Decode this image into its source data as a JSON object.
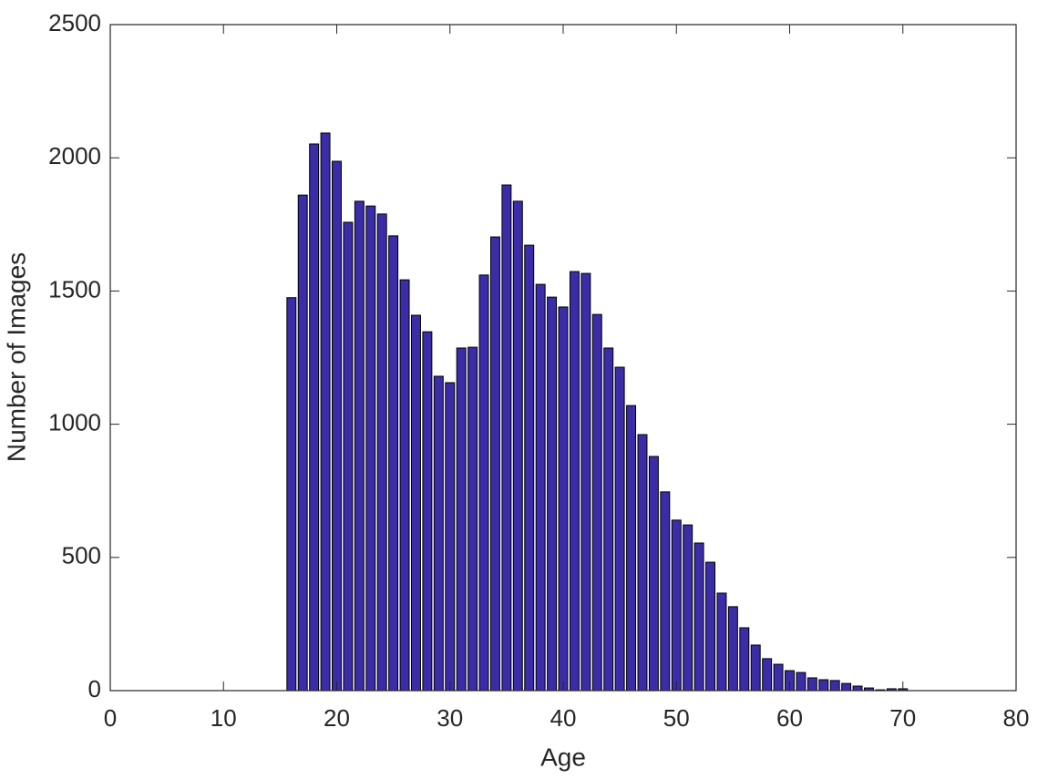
{
  "chart_data": {
    "type": "bar",
    "xlabel": "Age",
    "ylabel": "Number of Images",
    "x": [
      16,
      17,
      18,
      19,
      20,
      21,
      22,
      23,
      24,
      25,
      26,
      27,
      28,
      29,
      30,
      31,
      32,
      33,
      34,
      35,
      36,
      37,
      38,
      39,
      40,
      41,
      42,
      43,
      44,
      45,
      46,
      47,
      48,
      49,
      50,
      51,
      52,
      53,
      54,
      55,
      56,
      57,
      58,
      59,
      60,
      61,
      62,
      63,
      64,
      65,
      66,
      67,
      68,
      69,
      70
    ],
    "values": [
      1475,
      1860,
      2052,
      2093,
      1987,
      1758,
      1837,
      1819,
      1789,
      1707,
      1542,
      1409,
      1347,
      1180,
      1156,
      1286,
      1289,
      1560,
      1703,
      1898,
      1837,
      1672,
      1525,
      1477,
      1440,
      1573,
      1566,
      1412,
      1286,
      1214,
      1070,
      961,
      879,
      746,
      640,
      622,
      554,
      482,
      366,
      315,
      236,
      171,
      120,
      99,
      75,
      68,
      48,
      41,
      38,
      27,
      17,
      10,
      3,
      7,
      7
    ],
    "color": "#3b2ca8",
    "xlim": [
      0,
      80
    ],
    "xticks": [
      0,
      10,
      20,
      30,
      40,
      50,
      60,
      70,
      80
    ],
    "ylim": [
      0,
      2500
    ],
    "yticks": [
      0,
      500,
      1000,
      1500,
      2000,
      2500
    ]
  }
}
